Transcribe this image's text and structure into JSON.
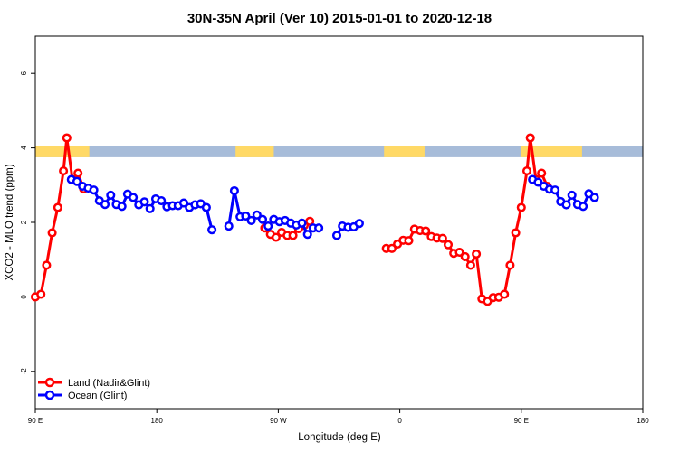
{
  "chart_data": {
    "type": "line",
    "title": "30N-35N April (Ver 10)   2015-01-01 to 2020-12-18",
    "xlabel": "Longitude (deg E)",
    "ylabel": "XCO2 - MLO trend (ppm)",
    "xlim": [
      -90,
      180
    ],
    "ylim": [
      -3,
      7
    ],
    "x_ticks": [
      {
        "value": -90,
        "label": "90 E"
      },
      {
        "value": -36,
        "label": "180"
      },
      {
        "value": 18,
        "label": "90 W"
      },
      {
        "value": 72,
        "label": "0"
      },
      {
        "value": 126,
        "label": "90 E"
      },
      {
        "value": 180,
        "label": "180"
      }
    ],
    "y_ticks": [
      -2,
      0,
      2,
      4,
      6
    ],
    "grid": false,
    "legend_position": "bottom-left",
    "colors": {
      "land": "#ff0000",
      "ocean": "#0000ff",
      "land_band": "#ffd966",
      "ocean_band": "#a7bcd9"
    },
    "surface_band": {
      "y_range": [
        3.75,
        4.05
      ],
      "land_segments": [
        [
          -90,
          -66
        ],
        [
          -1,
          16
        ],
        [
          65,
          83
        ],
        [
          126,
          153
        ]
      ]
    },
    "series": [
      {
        "name": "Land (Nadir&Glint)",
        "color": "#ff0000",
        "segments": [
          [
            [
              -90,
              0.0
            ],
            [
              -87.5,
              0.07
            ],
            [
              -85,
              0.85
            ],
            [
              -82.5,
              1.72
            ],
            [
              -80,
              2.4
            ],
            [
              -77.5,
              3.38
            ],
            [
              -76,
              4.27
            ],
            [
              -73.5,
              3.15
            ],
            [
              -71,
              3.32
            ],
            [
              -68.5,
              2.9
            ]
          ],
          [
            [
              12,
              1.85
            ],
            [
              14.5,
              1.68
            ],
            [
              17,
              1.6
            ],
            [
              19.5,
              1.73
            ],
            [
              22,
              1.65
            ],
            [
              24.5,
              1.65
            ],
            [
              27,
              1.83
            ],
            [
              29.5,
              1.92
            ],
            [
              32,
              2.03
            ]
          ],
          [
            [
              66,
              1.3
            ],
            [
              68.5,
              1.3
            ],
            [
              71,
              1.42
            ],
            [
              73.5,
              1.52
            ],
            [
              76,
              1.51
            ],
            [
              78.5,
              1.82
            ],
            [
              81,
              1.78
            ],
            [
              83.5,
              1.77
            ],
            [
              86,
              1.62
            ],
            [
              88.5,
              1.58
            ],
            [
              91,
              1.57
            ],
            [
              93.5,
              1.4
            ],
            [
              96,
              1.17
            ],
            [
              98.5,
              1.2
            ],
            [
              101,
              1.08
            ],
            [
              103.5,
              0.85
            ],
            [
              106,
              1.15
            ],
            [
              108.5,
              -0.05
            ],
            [
              111,
              -0.12
            ],
            [
              113.5,
              -0.02
            ],
            [
              116,
              -0.01
            ],
            [
              118.5,
              0.07
            ],
            [
              121,
              0.85
            ],
            [
              123.5,
              1.72
            ],
            [
              126,
              2.4
            ],
            [
              128.5,
              3.38
            ],
            [
              130,
              4.27
            ],
            [
              132.5,
              3.15
            ],
            [
              135,
              3.32
            ],
            [
              137.5,
              2.97
            ]
          ]
        ]
      },
      {
        "name": "Ocean (Glint)",
        "color": "#0000ff",
        "segments": [
          [
            [
              -74,
              3.15
            ],
            [
              -71.5,
              3.1
            ],
            [
              -69,
              2.97
            ],
            [
              -66.5,
              2.92
            ],
            [
              -64,
              2.87
            ],
            [
              -61.5,
              2.58
            ],
            [
              -59,
              2.48
            ],
            [
              -56.5,
              2.73
            ],
            [
              -54,
              2.48
            ],
            [
              -51.5,
              2.43
            ],
            [
              -49,
              2.76
            ],
            [
              -46.5,
              2.67
            ],
            [
              -44,
              2.47
            ],
            [
              -41.5,
              2.55
            ],
            [
              -39,
              2.37
            ],
            [
              -36.5,
              2.63
            ],
            [
              -34,
              2.58
            ],
            [
              -31.5,
              2.42
            ],
            [
              -29,
              2.45
            ],
            [
              -26.5,
              2.45
            ],
            [
              -24,
              2.52
            ],
            [
              -21.5,
              2.4
            ],
            [
              -19,
              2.47
            ],
            [
              -16.5,
              2.5
            ],
            [
              -14,
              2.4
            ],
            [
              -11.5,
              1.8
            ]
          ],
          [
            [
              -4,
              1.9
            ],
            [
              -1.5,
              2.85
            ],
            [
              1,
              2.15
            ],
            [
              3.5,
              2.17
            ],
            [
              6,
              2.05
            ],
            [
              8.5,
              2.2
            ],
            [
              11,
              2.08
            ],
            [
              13.5,
              1.9
            ],
            [
              16,
              2.08
            ],
            [
              18.5,
              2.02
            ],
            [
              21,
              2.05
            ],
            [
              23.5,
              1.98
            ],
            [
              26,
              1.93
            ],
            [
              28.5,
              1.98
            ],
            [
              31,
              1.68
            ],
            [
              33.5,
              1.85
            ],
            [
              36,
              1.85
            ]
          ],
          [
            [
              44,
              1.65
            ],
            [
              46.5,
              1.9
            ],
            [
              49,
              1.87
            ],
            [
              51.5,
              1.88
            ],
            [
              54,
              1.97
            ]
          ],
          [
            [
              131,
              3.15
            ],
            [
              133.5,
              3.08
            ],
            [
              136,
              2.97
            ],
            [
              138.5,
              2.89
            ],
            [
              141,
              2.87
            ],
            [
              143.5,
              2.56
            ],
            [
              146,
              2.47
            ],
            [
              148.5,
              2.73
            ],
            [
              151,
              2.48
            ],
            [
              153.5,
              2.43
            ],
            [
              156,
              2.77
            ],
            [
              158.5,
              2.67
            ]
          ]
        ]
      }
    ]
  }
}
